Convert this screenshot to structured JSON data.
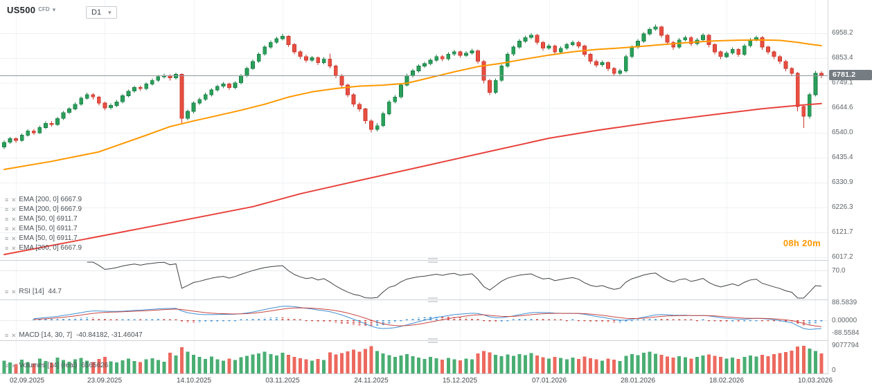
{
  "symbol_bar": {
    "symbol": "US500",
    "instrument_type": "CFD",
    "timeframe": "D1"
  },
  "timer": "08h 20m",
  "price_axis": {
    "labels": [
      "6958.2",
      "6853.4",
      "6749.1",
      "6644.6",
      "6540.0",
      "6435.4",
      "6330.9",
      "6226.3",
      "6121.7",
      "6017.2"
    ],
    "current_price": "6781.2"
  },
  "rsi_axis": {
    "labels": [
      "70.0"
    ]
  },
  "macd_axis": {
    "labels": [
      "88.5839",
      "0.00000",
      "-88.5584"
    ]
  },
  "volume_axis": {
    "labels": [
      "9077794",
      "0"
    ]
  },
  "date_axis": {
    "labels": [
      "02.09.2025",
      "23.09.2025",
      "14.10.2025",
      "03.11.2025",
      "24.11.2025",
      "15.12.2025",
      "07.01.2026",
      "28.01.2026",
      "18.02.2026",
      "10.03.2026"
    ]
  },
  "indicator_labels": {
    "ema_rows": [
      "EMA [200, 0] 6667.9",
      "EMA [200, 0] 6667.9",
      "EMA [50, 0] 6911.7",
      "EMA [50, 0] 6911.7",
      "EMA [50, 0] 6911.7",
      "EMA [200, 0] 6667.9"
    ],
    "rsi": {
      "label": "RSI [14]",
      "value": "44.7"
    },
    "macd": {
      "label": "MACD [14, 30, 7]",
      "value": "-40.84182, -31.46047"
    },
    "volumes": {
      "label": "Volumes [14] (real)",
      "value": "6565626"
    }
  },
  "colors": {
    "up": "#2aa05a",
    "up_border": "#1b7d46",
    "down": "#e94f42",
    "down_border": "#c9382e",
    "ema50": "#ff9800",
    "ema200": "#e8423c",
    "rsi_line": "#3c4043",
    "macd_line": "#3f8fd2",
    "macd_signal": "#c94540",
    "price_line": "#8f969c",
    "badge_bg": "#757c82",
    "timer": "#ff9800",
    "grid": "#eef1f4"
  },
  "chart_data": {
    "type": "candlestick",
    "title": "US500 CFD, D1",
    "x_tick_dates": [
      "02.09.2025",
      "23.09.2025",
      "14.10.2025",
      "03.11.2025",
      "24.11.2025",
      "15.12.2025",
      "07.01.2026",
      "28.01.2026",
      "18.02.2026",
      "10.03.2026"
    ],
    "ylim": [
      6017.2,
      6958.2
    ],
    "current_price": 6781.2,
    "ohlc": [
      [
        6480,
        6508,
        6472,
        6500
      ],
      [
        6500,
        6522,
        6493,
        6515
      ],
      [
        6515,
        6521,
        6498,
        6508
      ],
      [
        6508,
        6537,
        6502,
        6530
      ],
      [
        6530,
        6555,
        6524,
        6548
      ],
      [
        6548,
        6556,
        6531,
        6540
      ],
      [
        6540,
        6570,
        6535,
        6562
      ],
      [
        6562,
        6588,
        6556,
        6580
      ],
      [
        6580,
        6589,
        6566,
        6575
      ],
      [
        6575,
        6607,
        6569,
        6600
      ],
      [
        6600,
        6632,
        6594,
        6625
      ],
      [
        6625,
        6648,
        6618,
        6640
      ],
      [
        6640,
        6668,
        6634,
        6660
      ],
      [
        6660,
        6692,
        6654,
        6685
      ],
      [
        6685,
        6709,
        6679,
        6700
      ],
      [
        6700,
        6707,
        6680,
        6690
      ],
      [
        6690,
        6696,
        6655,
        6665
      ],
      [
        6665,
        6671,
        6634,
        6645
      ],
      [
        6645,
        6663,
        6638,
        6655
      ],
      [
        6655,
        6678,
        6648,
        6670
      ],
      [
        6670,
        6702,
        6664,
        6695
      ],
      [
        6695,
        6722,
        6689,
        6715
      ],
      [
        6715,
        6737,
        6708,
        6730
      ],
      [
        6730,
        6738,
        6716,
        6725
      ],
      [
        6725,
        6752,
        6719,
        6745
      ],
      [
        6745,
        6768,
        6739,
        6760
      ],
      [
        6760,
        6783,
        6754,
        6775
      ],
      [
        6775,
        6789,
        6768,
        6780
      ],
      [
        6780,
        6786,
        6760,
        6770
      ],
      [
        6770,
        6793,
        6763,
        6785
      ],
      [
        6785,
        6790,
        6580,
        6600
      ],
      [
        6600,
        6638,
        6592,
        6630
      ],
      [
        6630,
        6672,
        6622,
        6665
      ],
      [
        6665,
        6688,
        6658,
        6680
      ],
      [
        6680,
        6708,
        6674,
        6700
      ],
      [
        6700,
        6727,
        6693,
        6720
      ],
      [
        6720,
        6742,
        6713,
        6735
      ],
      [
        6735,
        6753,
        6728,
        6745
      ],
      [
        6745,
        6751,
        6720,
        6730
      ],
      [
        6730,
        6757,
        6723,
        6750
      ],
      [
        6750,
        6787,
        6744,
        6780
      ],
      [
        6780,
        6818,
        6774,
        6810
      ],
      [
        6810,
        6848,
        6804,
        6840
      ],
      [
        6840,
        6877,
        6833,
        6870
      ],
      [
        6870,
        6908,
        6864,
        6900
      ],
      [
        6900,
        6928,
        6893,
        6920
      ],
      [
        6920,
        6943,
        6913,
        6935
      ],
      [
        6935,
        6955,
        6928,
        6945
      ],
      [
        6945,
        6950,
        6900,
        6910
      ],
      [
        6910,
        6917,
        6870,
        6880
      ],
      [
        6880,
        6887,
        6849,
        6860
      ],
      [
        6860,
        6868,
        6835,
        6845
      ],
      [
        6845,
        6863,
        6838,
        6855
      ],
      [
        6855,
        6861,
        6824,
        6835
      ],
      [
        6835,
        6858,
        6828,
        6850
      ],
      [
        6850,
        6872,
        6810,
        6820
      ],
      [
        6820,
        6826,
        6769,
        6780
      ],
      [
        6780,
        6787,
        6729,
        6740
      ],
      [
        6740,
        6746,
        6689,
        6700
      ],
      [
        6700,
        6707,
        6649,
        6660
      ],
      [
        6660,
        6668,
        6628,
        6640
      ],
      [
        6640,
        6645,
        6578,
        6590
      ],
      [
        6590,
        6596,
        6542,
        6555
      ],
      [
        6555,
        6580,
        6546,
        6570
      ],
      [
        6570,
        6628,
        6563,
        6620
      ],
      [
        6620,
        6678,
        6613,
        6670
      ],
      [
        6670,
        6698,
        6663,
        6690
      ],
      [
        6690,
        6747,
        6684,
        6740
      ],
      [
        6740,
        6788,
        6734,
        6780
      ],
      [
        6780,
        6808,
        6773,
        6800
      ],
      [
        6800,
        6828,
        6793,
        6820
      ],
      [
        6820,
        6838,
        6813,
        6830
      ],
      [
        6830,
        6852,
        6823,
        6845
      ],
      [
        6845,
        6868,
        6838,
        6860
      ],
      [
        6860,
        6866,
        6841,
        6850
      ],
      [
        6850,
        6878,
        6843,
        6870
      ],
      [
        6870,
        6888,
        6863,
        6880
      ],
      [
        6880,
        6886,
        6855,
        6865
      ],
      [
        6865,
        6883,
        6858,
        6875
      ],
      [
        6875,
        6893,
        6868,
        6885
      ],
      [
        6885,
        6890,
        6830,
        6840
      ],
      [
        6840,
        6846,
        6748,
        6760
      ],
      [
        6760,
        6766,
        6698,
        6710
      ],
      [
        6710,
        6768,
        6703,
        6760
      ],
      [
        6760,
        6828,
        6753,
        6820
      ],
      [
        6820,
        6878,
        6813,
        6870
      ],
      [
        6870,
        6908,
        6863,
        6900
      ],
      [
        6900,
        6933,
        6893,
        6925
      ],
      [
        6925,
        6948,
        6918,
        6940
      ],
      [
        6940,
        6958,
        6933,
        6950
      ],
      [
        6950,
        6956,
        6910,
        6920
      ],
      [
        6920,
        6926,
        6884,
        6895
      ],
      [
        6895,
        6913,
        6888,
        6905
      ],
      [
        6905,
        6911,
        6869,
        6880
      ],
      [
        6880,
        6903,
        6873,
        6895
      ],
      [
        6895,
        6918,
        6888,
        6910
      ],
      [
        6910,
        6928,
        6903,
        6920
      ],
      [
        6920,
        6926,
        6895,
        6905
      ],
      [
        6905,
        6911,
        6859,
        6870
      ],
      [
        6870,
        6876,
        6829,
        6840
      ],
      [
        6840,
        6848,
        6815,
        6825
      ],
      [
        6825,
        6843,
        6818,
        6835
      ],
      [
        6835,
        6841,
        6799,
        6810
      ],
      [
        6810,
        6816,
        6779,
        6790
      ],
      [
        6790,
        6808,
        6783,
        6800
      ],
      [
        6800,
        6868,
        6793,
        6860
      ],
      [
        6860,
        6908,
        6853,
        6900
      ],
      [
        6900,
        6933,
        6893,
        6925
      ],
      [
        6925,
        6963,
        6918,
        6955
      ],
      [
        6955,
        6983,
        6948,
        6975
      ],
      [
        6975,
        6995,
        6968,
        6985
      ],
      [
        6985,
        6990,
        6939,
        6950
      ],
      [
        6950,
        6956,
        6909,
        6920
      ],
      [
        6920,
        6926,
        6889,
        6900
      ],
      [
        6900,
        6938,
        6893,
        6930
      ],
      [
        6930,
        6948,
        6923,
        6940
      ],
      [
        6940,
        6946,
        6904,
        6915
      ],
      [
        6915,
        6938,
        6908,
        6930
      ],
      [
        6930,
        6958,
        6923,
        6950
      ],
      [
        6950,
        6956,
        6899,
        6910
      ],
      [
        6910,
        6916,
        6869,
        6880
      ],
      [
        6880,
        6886,
        6849,
        6860
      ],
      [
        6860,
        6883,
        6853,
        6875
      ],
      [
        6875,
        6898,
        6868,
        6890
      ],
      [
        6890,
        6896,
        6859,
        6870
      ],
      [
        6870,
        6913,
        6863,
        6905
      ],
      [
        6905,
        6938,
        6898,
        6930
      ],
      [
        6930,
        6948,
        6923,
        6940
      ],
      [
        6940,
        6946,
        6889,
        6900
      ],
      [
        6900,
        6906,
        6869,
        6880
      ],
      [
        6880,
        6886,
        6849,
        6860
      ],
      [
        6860,
        6866,
        6829,
        6840
      ],
      [
        6840,
        6846,
        6799,
        6810
      ],
      [
        6810,
        6816,
        6779,
        6790
      ],
      [
        6790,
        6795,
        6630,
        6650
      ],
      [
        6650,
        6656,
        6560,
        6610
      ],
      [
        6610,
        6708,
        6600,
        6700
      ],
      [
        6700,
        6800,
        6693,
        6790
      ],
      [
        6790,
        6798,
        6770,
        6781.2
      ]
    ],
    "volumes": [
      4200000,
      3600000,
      3100000,
      4500000,
      3800000,
      3300000,
      4900000,
      4100000,
      3500000,
      5200000,
      4400000,
      3900000,
      4600000,
      5100000,
      4200000,
      3700000,
      4800000,
      5400000,
      4000000,
      3600000,
      4300000,
      4900000,
      4100000,
      3800000,
      4600000,
      5000000,
      4400000,
      3900000,
      6800000,
      5900000,
      8600000,
      7200000,
      6100000,
      5400000,
      4800000,
      5600000,
      4700000,
      4200000,
      4900000,
      4400000,
      5300000,
      5800000,
      6200000,
      6600000,
      7100000,
      6400000,
      5900000,
      6800000,
      6100000,
      5500000,
      5000000,
      4600000,
      4200000,
      4800000,
      4400000,
      6900000,
      6200000,
      6700000,
      7300000,
      7800000,
      7100000,
      8100000,
      9000000,
      7400000,
      6600000,
      6000000,
      5500000,
      5900000,
      6300000,
      5700000,
      5200000,
      4800000,
      5400000,
      5000000,
      4500000,
      5100000,
      4700000,
      4300000,
      4900000,
      4600000,
      6600000,
      7400000,
      6900000,
      6100000,
      5700000,
      6200000,
      5800000,
      6400000,
      6000000,
      6700000,
      5900000,
      5300000,
      4900000,
      5500000,
      5100000,
      4700000,
      5200000,
      4800000,
      5600000,
      5000000,
      4600000,
      4200000,
      4900000,
      4500000,
      4100000,
      5800000,
      6300000,
      6000000,
      6800000,
      7200000,
      6500000,
      6100000,
      5600000,
      5200000,
      5700000,
      5300000,
      4900000,
      5400000,
      5900000,
      6200000,
      5800000,
      5400000,
      4900000,
      5200000,
      4800000,
      5500000,
      5900000,
      5600000,
      6100000,
      5700000,
      6300000,
      6700000,
      7000000,
      7500000,
      8800000,
      9077794,
      8200000,
      7400000,
      6565626
    ],
    "overlays": [
      {
        "name": "EMA 50",
        "color": "#ff9800",
        "last": 6911.7,
        "points": [
          [
            0,
            6386
          ],
          [
            8,
            6420
          ],
          [
            16,
            6460
          ],
          [
            24,
            6530
          ],
          [
            28,
            6566
          ],
          [
            32,
            6590
          ],
          [
            36,
            6612
          ],
          [
            40,
            6635
          ],
          [
            44,
            6660
          ],
          [
            48,
            6690
          ],
          [
            52,
            6712
          ],
          [
            56,
            6726
          ],
          [
            60,
            6736
          ],
          [
            64,
            6740
          ],
          [
            68,
            6748
          ],
          [
            72,
            6772
          ],
          [
            76,
            6796
          ],
          [
            80,
            6818
          ],
          [
            84,
            6832
          ],
          [
            88,
            6850
          ],
          [
            92,
            6866
          ],
          [
            96,
            6880
          ],
          [
            100,
            6890
          ],
          [
            104,
            6896
          ],
          [
            108,
            6904
          ],
          [
            112,
            6912
          ],
          [
            116,
            6920
          ],
          [
            120,
            6926
          ],
          [
            124,
            6929
          ],
          [
            128,
            6930
          ],
          [
            131,
            6928
          ],
          [
            134,
            6920
          ],
          [
            136,
            6912
          ],
          [
            138,
            6906
          ]
        ]
      },
      {
        "name": "EMA 200",
        "color": "#e8423c",
        "last": 6667.9,
        "points": [
          [
            0,
            6029
          ],
          [
            14,
            6095
          ],
          [
            28,
            6162
          ],
          [
            42,
            6230
          ],
          [
            50,
            6284
          ],
          [
            60,
            6340
          ],
          [
            73,
            6412
          ],
          [
            82,
            6462
          ],
          [
            92,
            6517
          ],
          [
            100,
            6550
          ],
          [
            111,
            6589
          ],
          [
            120,
            6617
          ],
          [
            128,
            6641
          ],
          [
            134,
            6655
          ],
          [
            138,
            6663
          ]
        ]
      }
    ],
    "indicators": [
      {
        "name": "RSI",
        "params": [
          14
        ],
        "last": 44.7,
        "levels": [
          70
        ]
      },
      {
        "name": "MACD",
        "params": [
          14,
          30,
          7
        ],
        "last": [
          -40.84182,
          -31.46047
        ],
        "range": [
          -88.5584,
          88.5839
        ]
      },
      {
        "name": "Volumes",
        "params": [
          14
        ],
        "last": 6565626,
        "max": 9077794
      }
    ]
  }
}
